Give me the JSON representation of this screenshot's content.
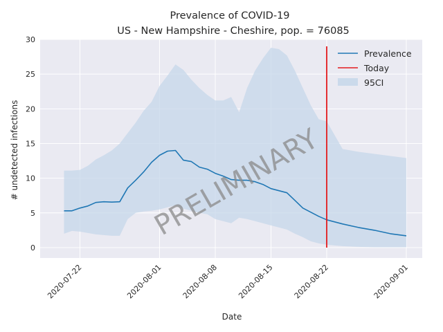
{
  "chart_data": {
    "type": "line",
    "title": "Prevalence of COVID-19",
    "subtitle": "US - New Hampshire - Cheshire, pop. = 76085",
    "xlabel": "Date",
    "ylabel": "# undetected infections",
    "x_ticks": [
      "2020-07-22",
      "2020-08-01",
      "2020-08-08",
      "2020-08-15",
      "2020-08-22",
      "2020-09-01"
    ],
    "y_ticks": [
      0,
      5,
      10,
      15,
      20,
      25,
      30
    ],
    "ylim": [
      -1.5,
      30
    ],
    "xlim": [
      "2020-07-17",
      "2020-09-03"
    ],
    "grid": true,
    "legend_position": "top-right",
    "watermark": "PRELIMINARY",
    "colors": {
      "prevalence": "#1f77b4",
      "today": "#e31a1c",
      "ci": "#c6d7ea",
      "plot_bg": "#eaeaf2",
      "grid": "#ffffff"
    },
    "series": [
      {
        "name": "Prevalence",
        "x": [
          "2020-07-20",
          "2020-07-21",
          "2020-07-22",
          "2020-07-23",
          "2020-07-24",
          "2020-07-25",
          "2020-07-26",
          "2020-07-27",
          "2020-07-28",
          "2020-07-29",
          "2020-07-30",
          "2020-07-31",
          "2020-08-01",
          "2020-08-02",
          "2020-08-03",
          "2020-08-04",
          "2020-08-05",
          "2020-08-06",
          "2020-08-07",
          "2020-08-08",
          "2020-08-09",
          "2020-08-10",
          "2020-08-11",
          "2020-08-12",
          "2020-08-13",
          "2020-08-14",
          "2020-08-15",
          "2020-08-16",
          "2020-08-17",
          "2020-08-18",
          "2020-08-19",
          "2020-08-20",
          "2020-08-21",
          "2020-08-22",
          "2020-08-24",
          "2020-08-26",
          "2020-08-28",
          "2020-08-30",
          "2020-09-01"
        ],
        "values": [
          5.3,
          5.3,
          5.7,
          6.0,
          6.5,
          6.6,
          6.55,
          6.6,
          8.6,
          9.7,
          10.9,
          12.3,
          13.3,
          13.9,
          14.0,
          12.6,
          12.4,
          11.6,
          11.3,
          10.7,
          10.3,
          9.8,
          9.7,
          9.7,
          9.5,
          9.1,
          8.5,
          8.2,
          7.9,
          6.8,
          5.7,
          5.1,
          4.5,
          4.0,
          3.4,
          2.9,
          2.5,
          2.0,
          1.7
        ]
      },
      {
        "name": "95CI",
        "x": [
          "2020-07-20",
          "2020-07-21",
          "2020-07-22",
          "2020-07-23",
          "2020-07-24",
          "2020-07-25",
          "2020-07-26",
          "2020-07-27",
          "2020-07-28",
          "2020-07-29",
          "2020-07-30",
          "2020-07-31",
          "2020-08-01",
          "2020-08-02",
          "2020-08-03",
          "2020-08-04",
          "2020-08-05",
          "2020-08-06",
          "2020-08-07",
          "2020-08-08",
          "2020-08-09",
          "2020-08-10",
          "2020-08-11",
          "2020-08-12",
          "2020-08-13",
          "2020-08-14",
          "2020-08-15",
          "2020-08-16",
          "2020-08-17",
          "2020-08-18",
          "2020-08-19",
          "2020-08-20",
          "2020-08-21",
          "2020-08-22",
          "2020-08-24",
          "2020-08-26",
          "2020-08-28",
          "2020-08-30",
          "2020-09-01"
        ],
        "upper": [
          11.1,
          11.1,
          11.2,
          11.8,
          12.7,
          13.3,
          14.0,
          15.0,
          16.5,
          18.0,
          19.7,
          21.0,
          23.3,
          24.8,
          26.4,
          25.6,
          24.2,
          23.0,
          22.0,
          21.2,
          21.2,
          21.7,
          19.5,
          23.0,
          25.5,
          27.3,
          28.8,
          28.6,
          27.7,
          25.5,
          23.0,
          20.5,
          18.5,
          18.2,
          14.2,
          13.8,
          13.5,
          13.2,
          12.9
        ],
        "lower": [
          2.0,
          2.4,
          2.3,
          2.1,
          1.9,
          1.8,
          1.7,
          1.7,
          4.1,
          5.0,
          5.2,
          5.3,
          5.5,
          5.8,
          6.1,
          5.6,
          5.3,
          5.0,
          4.8,
          4.1,
          3.8,
          3.5,
          4.3,
          4.1,
          3.8,
          3.5,
          3.2,
          2.9,
          2.6,
          2.0,
          1.5,
          0.9,
          0.6,
          0.4,
          0.2,
          0.1,
          0.05,
          0.05,
          0.05
        ]
      }
    ],
    "today": {
      "name": "Today",
      "x": "2020-08-22",
      "y": [
        0,
        29
      ]
    }
  }
}
